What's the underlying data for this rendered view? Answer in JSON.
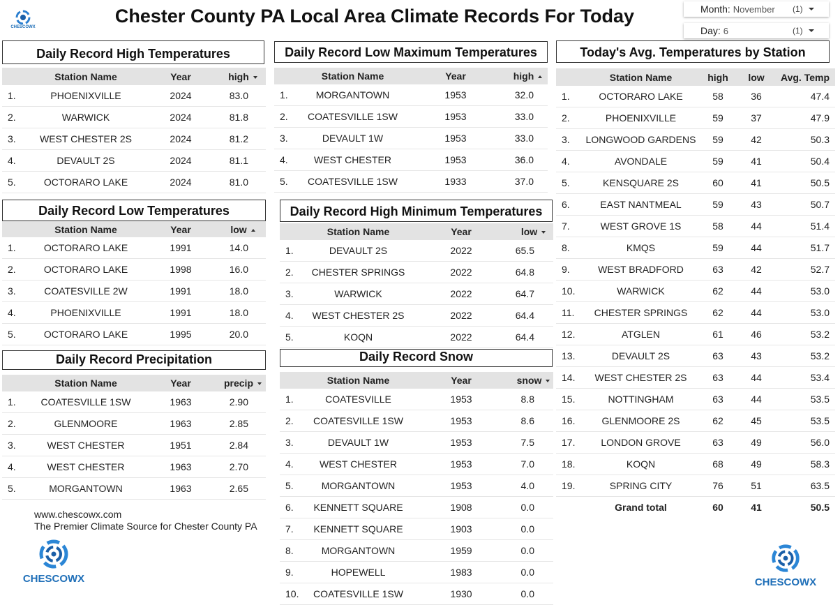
{
  "header": {
    "title": "Chester County PA Local Area Climate Records For Today",
    "month_filter": {
      "label": "Month:",
      "value": "November",
      "count": "(1)"
    },
    "day_filter": {
      "label": "Day:",
      "value": "6",
      "count": "(1)"
    }
  },
  "logo": {
    "text": "CHESCOWX"
  },
  "panels": [
    {
      "title": "Daily Record High Temperatures",
      "columns": [
        "Station Name",
        "Year",
        "high"
      ],
      "sort": "desc",
      "rows": [
        [
          "1.",
          "PHOENIXVILLE",
          "2024",
          "83.0"
        ],
        [
          "2.",
          "WARWICK",
          "2024",
          "81.8"
        ],
        [
          "3.",
          "WEST CHESTER 2S",
          "2024",
          "81.2"
        ],
        [
          "4.",
          "DEVAULT 2S",
          "2024",
          "81.1"
        ],
        [
          "5.",
          "OCTORARO LAKE",
          "2024",
          "81.0"
        ]
      ]
    },
    {
      "title": "Daily Record Low Temperatures",
      "columns": [
        "Station Name",
        "Year",
        "low"
      ],
      "sort": "asc",
      "rows": [
        [
          "1.",
          "OCTORARO LAKE",
          "1991",
          "14.0"
        ],
        [
          "2.",
          "OCTORARO LAKE",
          "1998",
          "16.0"
        ],
        [
          "3.",
          "COATESVILLE 2W",
          "1991",
          "18.0"
        ],
        [
          "4.",
          "PHOENIXVILLE",
          "1991",
          "18.0"
        ],
        [
          "5.",
          "OCTORARO LAKE",
          "1995",
          "20.0"
        ]
      ]
    },
    {
      "title": "Daily Record Precipitation",
      "columns": [
        "Station Name",
        "Year",
        "precip"
      ],
      "sort": "desc",
      "rows": [
        [
          "1.",
          "COATESVILLE 1SW",
          "1963",
          "2.90"
        ],
        [
          "2.",
          "GLENMOORE",
          "1963",
          "2.85"
        ],
        [
          "3.",
          "WEST CHESTER",
          "1951",
          "2.84"
        ],
        [
          "4.",
          "WEST CHESTER",
          "1963",
          "2.70"
        ],
        [
          "5.",
          "MORGANTOWN",
          "1963",
          "2.65"
        ]
      ]
    },
    {
      "title": "Daily Record Low Maximum Temperatures",
      "columns": [
        "Station Name",
        "Year",
        "high"
      ],
      "sort": "asc",
      "rows": [
        [
          "1.",
          "MORGANTOWN",
          "1953",
          "32.0"
        ],
        [
          "2.",
          "COATESVILLE 1SW",
          "1953",
          "33.0"
        ],
        [
          "3.",
          "DEVAULT 1W",
          "1953",
          "33.0"
        ],
        [
          "4.",
          "WEST CHESTER",
          "1953",
          "36.0"
        ],
        [
          "5.",
          "COATESVILLE 1SW",
          "1933",
          "37.0"
        ]
      ]
    },
    {
      "title": "Daily Record High Minimum Temperatures",
      "columns": [
        "Station Name",
        "Year",
        "low"
      ],
      "sort": "desc",
      "rows": [
        [
          "1.",
          "DEVAULT 2S",
          "2022",
          "65.5"
        ],
        [
          "2.",
          "CHESTER SPRINGS",
          "2022",
          "64.8"
        ],
        [
          "3.",
          "WARWICK",
          "2022",
          "64.7"
        ],
        [
          "4.",
          "WEST CHESTER 2S",
          "2022",
          "64.4"
        ],
        [
          "5.",
          "KOQN",
          "2022",
          "64.4"
        ]
      ]
    },
    {
      "title": "Daily Record Snow",
      "columns": [
        "Station Name",
        "Year",
        "snow"
      ],
      "sort": "desc",
      "rows": [
        [
          "1.",
          "COATESVILLE",
          "1953",
          "8.8"
        ],
        [
          "2.",
          "COATESVILLE 1SW",
          "1953",
          "8.6"
        ],
        [
          "3.",
          "DEVAULT 1W",
          "1953",
          "7.5"
        ],
        [
          "4.",
          "WEST CHESTER",
          "1953",
          "7.0"
        ],
        [
          "5.",
          "MORGANTOWN",
          "1953",
          "4.0"
        ],
        [
          "6.",
          "KENNETT SQUARE",
          "1908",
          "0.0"
        ],
        [
          "7.",
          "KENNETT SQUARE",
          "1903",
          "0.0"
        ],
        [
          "8.",
          "MORGANTOWN",
          "1959",
          "0.0"
        ],
        [
          "9.",
          "HOPEWELL",
          "1983",
          "0.0"
        ],
        [
          "10.",
          "COATESVILLE 1SW",
          "1930",
          "0.0"
        ]
      ]
    },
    {
      "title": "Today's Avg. Temperatures by Station",
      "columns": [
        "Station Name",
        "high",
        "low",
        "Avg. Temp"
      ],
      "rows": [
        [
          "1.",
          "OCTORARO LAKE",
          "58",
          "36",
          "47.4"
        ],
        [
          "2.",
          "PHOENIXVILLE",
          "59",
          "37",
          "47.9"
        ],
        [
          "3.",
          "LONGWOOD GARDENS",
          "59",
          "42",
          "50.3"
        ],
        [
          "4.",
          "AVONDALE",
          "59",
          "41",
          "50.4"
        ],
        [
          "5.",
          "KENSQUARE 2S",
          "60",
          "41",
          "50.5"
        ],
        [
          "6.",
          "EAST NANTMEAL",
          "59",
          "43",
          "50.7"
        ],
        [
          "7.",
          "WEST GROVE 1S",
          "58",
          "44",
          "51.4"
        ],
        [
          "8.",
          "KMQS",
          "59",
          "44",
          "51.7"
        ],
        [
          "9.",
          "WEST BRADFORD",
          "63",
          "42",
          "52.7"
        ],
        [
          "10.",
          "WARWICK",
          "62",
          "44",
          "53.0"
        ],
        [
          "11.",
          "CHESTER SPRINGS",
          "62",
          "44",
          "53.0"
        ],
        [
          "12.",
          "ATGLEN",
          "61",
          "46",
          "53.2"
        ],
        [
          "13.",
          "DEVAULT 2S",
          "63",
          "43",
          "53.2"
        ],
        [
          "14.",
          "WEST CHESTER 2S",
          "63",
          "44",
          "53.4"
        ],
        [
          "15.",
          "NOTTINGHAM",
          "63",
          "44",
          "53.5"
        ],
        [
          "16.",
          "GLENMOORE 2S",
          "62",
          "45",
          "53.5"
        ],
        [
          "17.",
          "LONDON GROVE",
          "63",
          "49",
          "56.0"
        ],
        [
          "18.",
          "KOQN",
          "68",
          "49",
          "58.3"
        ],
        [
          "19.",
          "SPRING CITY",
          "76",
          "51",
          "63.5"
        ]
      ],
      "total": [
        "Grand total",
        "60",
        "41",
        "50.5"
      ]
    }
  ],
  "footer": {
    "url": "www.chescowx.com",
    "tagline": "The Premier Climate Source for Chester County PA",
    "logo_text": "CHESCOWX"
  }
}
